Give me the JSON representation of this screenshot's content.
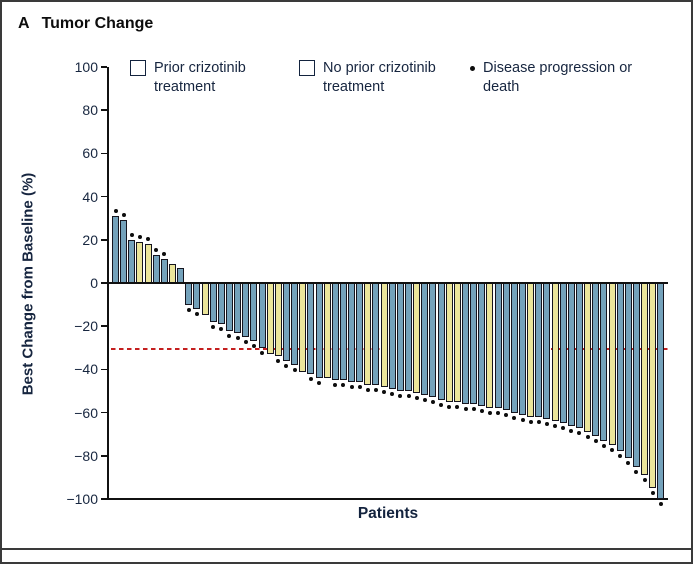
{
  "panel": {
    "letter": "A",
    "title": "Tumor Change"
  },
  "legend": [
    {
      "kind": "swatch",
      "group": "prior",
      "label": "Prior crizotinib treatment"
    },
    {
      "kind": "swatch",
      "group": "no_prior",
      "label": "No prior crizotinib treatment"
    },
    {
      "kind": "dot",
      "group": "event",
      "label": "Disease progression or death"
    }
  ],
  "colors": {
    "prior": "#74a2bb",
    "no_prior": "#ebe59a",
    "event_dot": "#0d0d0d",
    "reference_line": "#c41f1f",
    "text": "#16253f"
  },
  "chart_data": {
    "type": "bar",
    "title": "Tumor Change",
    "xlabel": "Patients",
    "ylabel": "Best Change from Baseline (%)",
    "ylim": [
      -100,
      100
    ],
    "yticks": [
      100,
      80,
      60,
      40,
      20,
      0,
      -20,
      -40,
      -60,
      -80,
      -100
    ],
    "grid": false,
    "legend_position": "top",
    "reference_line_y": -30,
    "reference_line_style": "dashed-red",
    "bar_meaning": "Each bar = one patient; value = best % change in tumor burden from baseline; group = prior vs no prior crizotinib; event=1 means disease progression or death marker dot.",
    "bars": [
      [
        31,
        "prior",
        1
      ],
      [
        29,
        "prior",
        1
      ],
      [
        20,
        "prior",
        1
      ],
      [
        19,
        "no_prior",
        1
      ],
      [
        18,
        "no_prior",
        1
      ],
      [
        13,
        "prior",
        1
      ],
      [
        11,
        "prior",
        1
      ],
      [
        9,
        "no_prior",
        0
      ],
      [
        7,
        "prior",
        0
      ],
      [
        -10,
        "prior",
        1
      ],
      [
        -12,
        "prior",
        1
      ],
      [
        -15,
        "no_prior",
        0
      ],
      [
        -18,
        "prior",
        1
      ],
      [
        -19,
        "prior",
        1
      ],
      [
        -22,
        "prior",
        1
      ],
      [
        -23,
        "prior",
        1
      ],
      [
        -25,
        "prior",
        1
      ],
      [
        -27,
        "prior",
        1
      ],
      [
        -30,
        "prior",
        1
      ],
      [
        -33,
        "no_prior",
        0
      ],
      [
        -34,
        "no_prior",
        1
      ],
      [
        -36,
        "prior",
        1
      ],
      [
        -38,
        "prior",
        1
      ],
      [
        -41,
        "no_prior",
        0
      ],
      [
        -42,
        "prior",
        1
      ],
      [
        -44,
        "prior",
        1
      ],
      [
        -44,
        "no_prior",
        0
      ],
      [
        -45,
        "prior",
        1
      ],
      [
        -45,
        "prior",
        1
      ],
      [
        -46,
        "prior",
        1
      ],
      [
        -46,
        "prior",
        1
      ],
      [
        -47,
        "no_prior",
        1
      ],
      [
        -47,
        "prior",
        1
      ],
      [
        -48,
        "no_prior",
        1
      ],
      [
        -49,
        "prior",
        1
      ],
      [
        -50,
        "prior",
        1
      ],
      [
        -50,
        "prior",
        1
      ],
      [
        -51,
        "no_prior",
        1
      ],
      [
        -52,
        "prior",
        1
      ],
      [
        -53,
        "prior",
        1
      ],
      [
        -54,
        "prior",
        1
      ],
      [
        -55,
        "no_prior",
        1
      ],
      [
        -55,
        "no_prior",
        1
      ],
      [
        -56,
        "prior",
        1
      ],
      [
        -56,
        "prior",
        1
      ],
      [
        -57,
        "prior",
        1
      ],
      [
        -58,
        "no_prior",
        1
      ],
      [
        -58,
        "prior",
        1
      ],
      [
        -59,
        "prior",
        1
      ],
      [
        -60,
        "prior",
        1
      ],
      [
        -61,
        "prior",
        1
      ],
      [
        -62,
        "no_prior",
        1
      ],
      [
        -62,
        "prior",
        1
      ],
      [
        -63,
        "prior",
        1
      ],
      [
        -64,
        "no_prior",
        1
      ],
      [
        -65,
        "prior",
        1
      ],
      [
        -66,
        "prior",
        1
      ],
      [
        -67,
        "prior",
        1
      ],
      [
        -69,
        "no_prior",
        1
      ],
      [
        -71,
        "prior",
        1
      ],
      [
        -73,
        "prior",
        1
      ],
      [
        -75,
        "no_prior",
        1
      ],
      [
        -78,
        "prior",
        1
      ],
      [
        -81,
        "prior",
        1
      ],
      [
        -85,
        "prior",
        1
      ],
      [
        -89,
        "no_prior",
        1
      ],
      [
        -95,
        "no_prior",
        1
      ],
      [
        -100,
        "prior",
        1
      ]
    ]
  }
}
